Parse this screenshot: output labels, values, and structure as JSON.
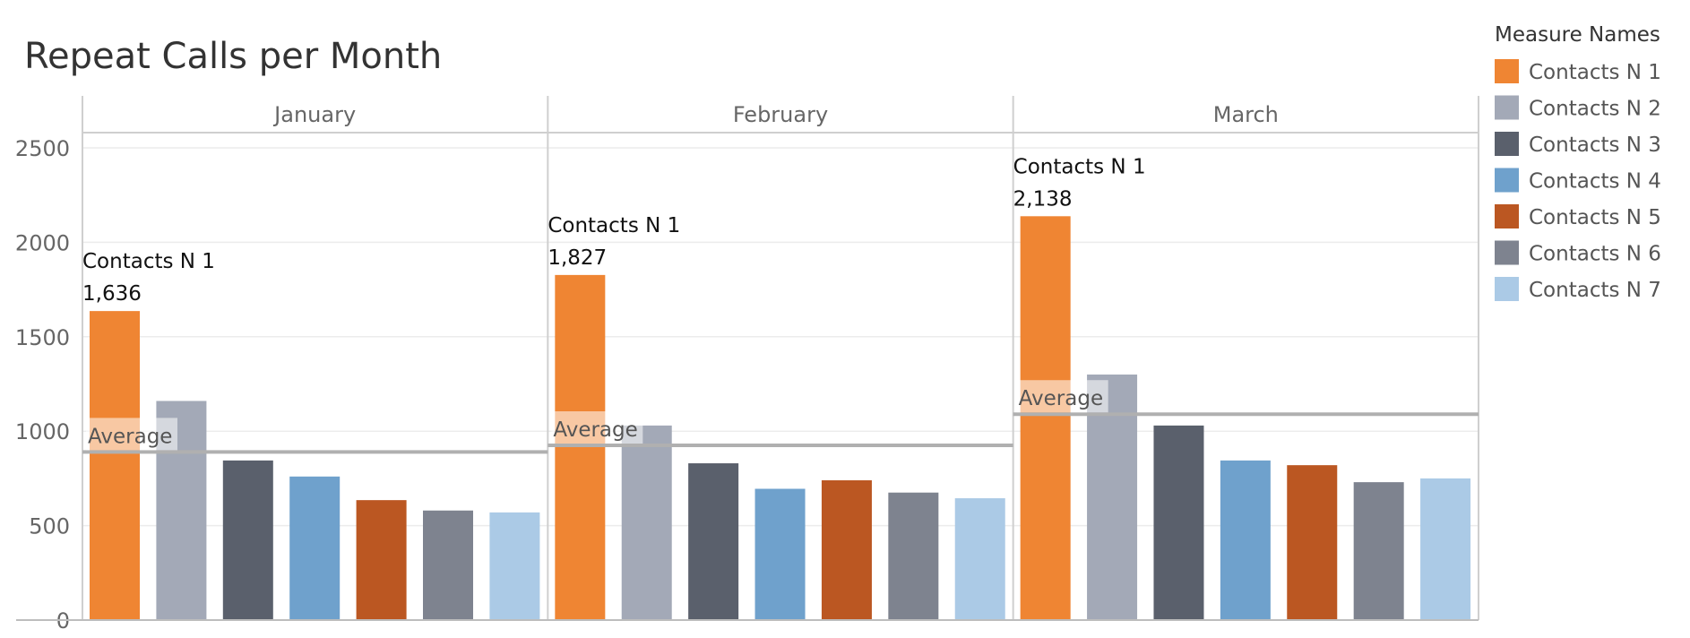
{
  "chart_data": {
    "type": "bar",
    "title": "Repeat Calls per Month",
    "xlabel": "",
    "ylabel": "",
    "ylim": [
      0,
      2600
    ],
    "yticks": [
      0,
      500,
      1000,
      1500,
      2000,
      2500
    ],
    "grid": true,
    "legend_position": "right",
    "legend_title": "Measure Names",
    "categories": [
      "January",
      "February",
      "March"
    ],
    "series": [
      {
        "name": "Contacts N 1",
        "color": "#ef8533",
        "values": [
          1636,
          1827,
          2138
        ]
      },
      {
        "name": "Contacts N 2",
        "color": "#a3a9b7",
        "values": [
          1160,
          1030,
          1300
        ]
      },
      {
        "name": "Contacts N 3",
        "color": "#5a606c",
        "values": [
          845,
          830,
          1030
        ]
      },
      {
        "name": "Contacts N 4",
        "color": "#6fa1cc",
        "values": [
          760,
          695,
          845
        ]
      },
      {
        "name": "Contacts N 5",
        "color": "#bb5722",
        "values": [
          635,
          740,
          820
        ]
      },
      {
        "name": "Contacts N 6",
        "color": "#7e838f",
        "values": [
          580,
          675,
          730
        ]
      },
      {
        "name": "Contacts N 7",
        "color": "#abcae6",
        "values": [
          570,
          645,
          750
        ]
      }
    ],
    "averages": {
      "label": "Average",
      "values": [
        890,
        925,
        1090
      ]
    },
    "annotations": [
      {
        "month": "January",
        "series": "Contacts N 1",
        "label": "Contacts N 1",
        "value_text": "1,636"
      },
      {
        "month": "February",
        "series": "Contacts N 1",
        "label": "Contacts N 1",
        "value_text": "1,827"
      },
      {
        "month": "March",
        "series": "Contacts N 1",
        "label": "Contacts N 1",
        "value_text": "2,138"
      }
    ]
  }
}
